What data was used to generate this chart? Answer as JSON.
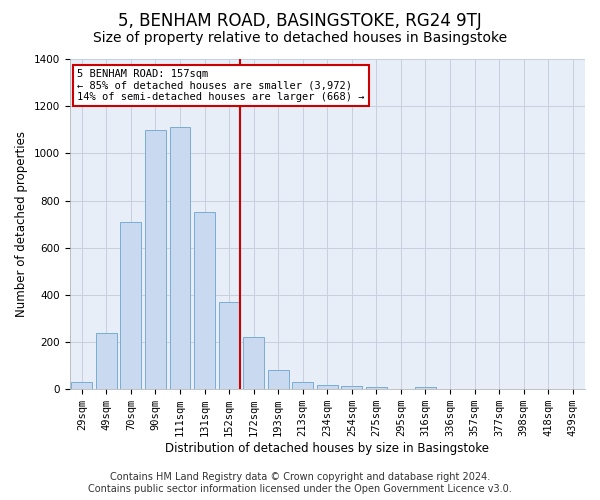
{
  "title": "5, BENHAM ROAD, BASINGSTOKE, RG24 9TJ",
  "subtitle": "Size of property relative to detached houses in Basingstoke",
  "xlabel": "Distribution of detached houses by size in Basingstoke",
  "ylabel": "Number of detached properties",
  "footer_line1": "Contains HM Land Registry data © Crown copyright and database right 2024.",
  "footer_line2": "Contains public sector information licensed under the Open Government Licence v3.0.",
  "bar_labels": [
    "29sqm",
    "49sqm",
    "70sqm",
    "90sqm",
    "111sqm",
    "131sqm",
    "152sqm",
    "172sqm",
    "193sqm",
    "213sqm",
    "234sqm",
    "254sqm",
    "275sqm",
    "295sqm",
    "316sqm",
    "336sqm",
    "357sqm",
    "377sqm",
    "398sqm",
    "418sqm",
    "439sqm"
  ],
  "bar_heights": [
    30,
    240,
    710,
    1100,
    1110,
    750,
    370,
    220,
    80,
    30,
    20,
    15,
    10,
    0,
    10,
    0,
    0,
    0,
    0,
    0,
    0
  ],
  "bar_color": "#c8d9f0",
  "bar_edge_color": "#7aadd4",
  "grid_color": "#c8d0e0",
  "background_color": "#ffffff",
  "plot_bg_color": "#e8eef8",
  "vline_index": 6,
  "vline_color": "#cc0000",
  "annotation_text": "5 BENHAM ROAD: 157sqm\n← 85% of detached houses are smaller (3,972)\n14% of semi-detached houses are larger (668) →",
  "annotation_box_color": "#cc0000",
  "ylim": [
    0,
    1400
  ],
  "title_fontsize": 12,
  "subtitle_fontsize": 10,
  "axis_label_fontsize": 8.5,
  "tick_fontsize": 7.5,
  "footer_fontsize": 7
}
